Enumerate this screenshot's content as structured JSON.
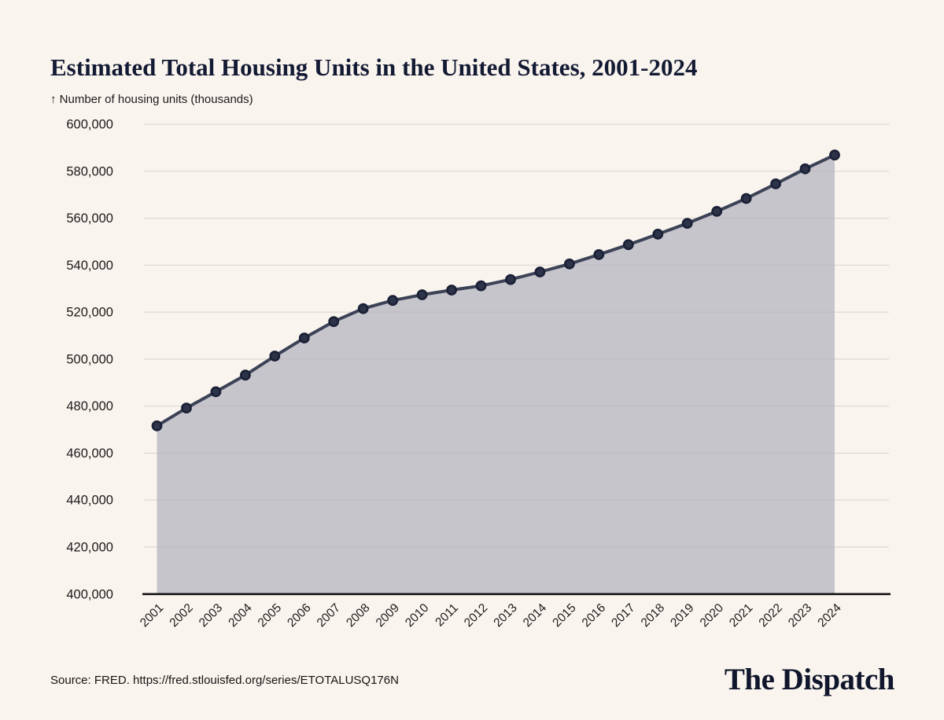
{
  "header": {
    "title": "Estimated Total Housing Units in the United States, 2001-2024",
    "yaxis_caption": "↑ Number of housing units (thousands)"
  },
  "footer": {
    "source": "Source: FRED. https://fred.stlouisfed.org/series/ETOTALUSQ176N",
    "logo": "The Dispatch"
  },
  "colors": {
    "background": "#faf4ee",
    "title_text": "#131a33",
    "area_fill": "#c5c3ca",
    "gridline": "#b4b0b2",
    "line": "#3c4357",
    "point_fill": "#2d3348",
    "point_stroke": "#1a2035",
    "axis_line": "#141414",
    "tick_text": "#1a1a1a"
  },
  "chart_data": {
    "type": "area",
    "title": "Estimated Total Housing Units in the United States, 2001-2024",
    "xlabel": "",
    "ylabel": "Number of housing units (thousands)",
    "x": [
      2001,
      2002,
      2003,
      2004,
      2005,
      2006,
      2007,
      2008,
      2009,
      2010,
      2011,
      2012,
      2013,
      2014,
      2015,
      2016,
      2017,
      2018,
      2019,
      2020,
      2021,
      2022,
      2023,
      2024
    ],
    "values": [
      471600,
      479200,
      486100,
      493200,
      501300,
      509000,
      516000,
      521500,
      525000,
      527400,
      529400,
      531200,
      533900,
      537100,
      540500,
      544500,
      548700,
      553200,
      557800,
      562900,
      568400,
      574600,
      581000,
      586900
    ],
    "ylim": [
      400000,
      600000
    ],
    "ytick_step": 20000,
    "ytick_labels": [
      "400,000",
      "420,000",
      "440,000",
      "460,000",
      "480,000",
      "500,000",
      "520,000",
      "540,000",
      "560,000",
      "580,000",
      "600,000"
    ],
    "grid": "horizontal",
    "legend": "none",
    "markers": true
  }
}
